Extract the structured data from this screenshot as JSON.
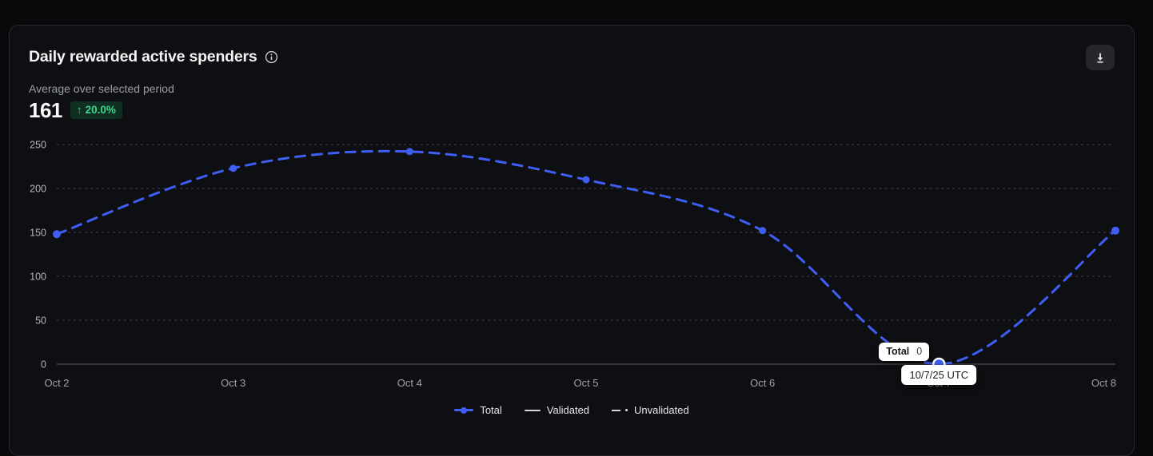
{
  "card": {
    "title": "Daily rewarded active spenders",
    "subtitle": "Average over selected period",
    "average_value": "161",
    "change_badge": {
      "arrow": "↑",
      "value": "20.0%"
    }
  },
  "tooltip": {
    "series_label": "Total",
    "value": "0",
    "date_label": "10/7/25 UTC",
    "point_index": 5
  },
  "chart_data": {
    "type": "line",
    "title": "Daily rewarded active spenders",
    "x_labels": [
      "Oct 2",
      "Oct 3",
      "Oct 4",
      "Oct 5",
      "Oct 6",
      "Oct 7",
      "Oct 8"
    ],
    "y_ticks": [
      0,
      50,
      100,
      150,
      200,
      250
    ],
    "ylim": [
      0,
      250
    ],
    "grid": "horizontal-dashed",
    "legend_position": "bottom-center",
    "series": [
      {
        "name": "Total",
        "style": "dashed",
        "marker": "circle",
        "color": "#3f5ef4",
        "values": [
          148,
          223,
          242,
          210,
          152,
          0,
          152
        ]
      }
    ],
    "legend": [
      {
        "label": "Total",
        "marker": "dashed-line-with-dot",
        "color": "#3f5ef4"
      },
      {
        "label": "Validated",
        "marker": "solid-line",
        "color": "#d8d9dc"
      },
      {
        "label": "Unvalidated",
        "marker": "dash-dot-line",
        "color": "#d8d9dc"
      }
    ]
  },
  "colors": {
    "page_bg": "#09090b",
    "card_bg": "#0e0f12",
    "card_border": "#27282d",
    "accent_blue": "#3f5ef4",
    "badge_bg": "#0e2f21",
    "badge_text": "#3ed68d",
    "grid_line": "#3e4045",
    "axis_line": "#5c5e63",
    "tick_text": "#b4b6ba",
    "xlabel_text": "#9fa2a7",
    "tooltip_bg": "#ffffff",
    "tooltip_text": "#1b1b1f"
  }
}
